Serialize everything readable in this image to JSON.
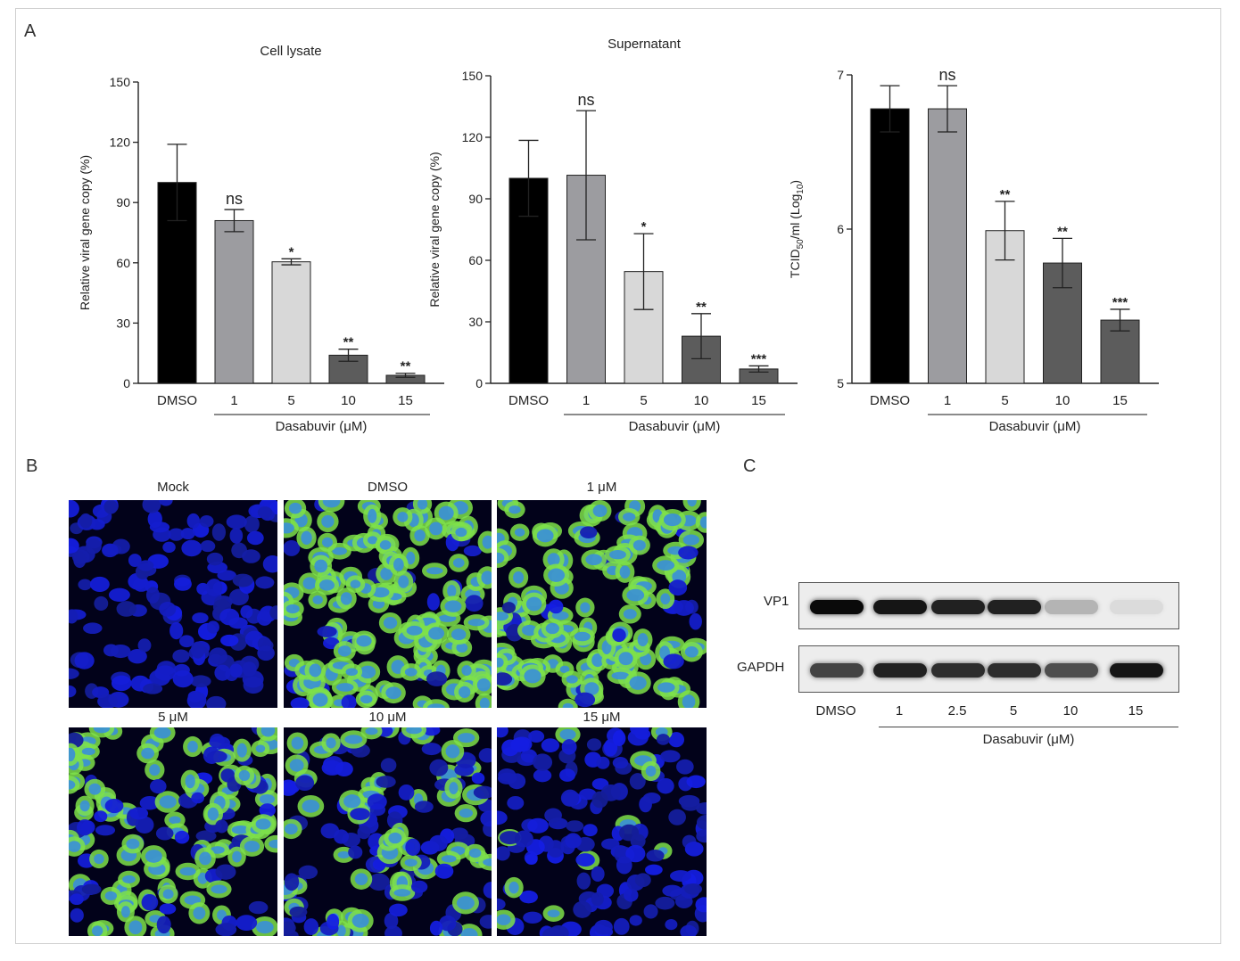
{
  "panels": {
    "a": "A",
    "b": "B",
    "c": "C"
  },
  "chart_data": [
    {
      "type": "bar",
      "title": "Cell lysate",
      "ylabel": "Relative viral gene copy (%)",
      "xlabel": "Dasabuvir (μM)",
      "categories": [
        "DMSO",
        "1",
        "5",
        "10",
        "15"
      ],
      "values": [
        100,
        81,
        60.5,
        14,
        4
      ],
      "errors": [
        19,
        5.5,
        1.5,
        3,
        1
      ],
      "annotations": [
        "",
        "ns",
        "*",
        "**",
        "**"
      ],
      "ylim": [
        0,
        150
      ],
      "yticks": [
        "0",
        "30",
        "60",
        "90",
        "120",
        "150"
      ],
      "colors": [
        "#000000",
        "#9c9ca0",
        "#d8d8d8",
        "#5c5c5c",
        "#5c5c5c"
      ]
    },
    {
      "type": "bar",
      "title": "Supernatant",
      "ylabel": "Relative viral gene copy (%)",
      "xlabel": "Dasabuvir (μM)",
      "categories": [
        "DMSO",
        "1",
        "5",
        "10",
        "15"
      ],
      "values": [
        100,
        101.5,
        54.5,
        23,
        7
      ],
      "errors": [
        18.5,
        31.5,
        18.5,
        11,
        1.5
      ],
      "annotations": [
        "",
        "ns",
        "*",
        "**",
        "***"
      ],
      "ylim": [
        0,
        150
      ],
      "yticks": [
        "0",
        "30",
        "60",
        "90",
        "120",
        "150"
      ],
      "colors": [
        "#000000",
        "#9c9ca0",
        "#d8d8d8",
        "#5c5c5c",
        "#5c5c5c"
      ]
    },
    {
      "type": "bar",
      "title": "",
      "ylabel": "TCID50/ml (Log10)",
      "xlabel": "Dasabuvir (μM)",
      "categories": [
        "DMSO",
        "1",
        "5",
        "10",
        "15"
      ],
      "values": [
        6.78,
        6.78,
        5.99,
        5.78,
        5.41
      ],
      "errors": [
        0.15,
        0.15,
        0.19,
        0.16,
        0.07
      ],
      "annotations": [
        "",
        "ns",
        "**",
        "**",
        "***"
      ],
      "ylim": [
        5,
        7
      ],
      "yticks": [
        "5",
        "6",
        "7"
      ],
      "colors": [
        "#000000",
        "#9c9ca0",
        "#d8d8d8",
        "#5c5c5c",
        "#5c5c5c"
      ]
    }
  ],
  "microscopy": {
    "titles": [
      "Mock",
      "DMSO",
      "1 μM",
      "5 μM",
      "10 μM",
      "15 μM"
    ],
    "infection_level": [
      0,
      0.85,
      0.8,
      0.6,
      0.35,
      0.05
    ]
  },
  "western_blot": {
    "bands": [
      "VP1",
      "GAPDH"
    ],
    "lanes": [
      "DMSO",
      "1",
      "2.5",
      "5",
      "10",
      "15"
    ],
    "xlabel": "Dasabuvir (μM)",
    "vp1_intensity": [
      1.0,
      0.95,
      0.9,
      0.9,
      0.25,
      0.08
    ],
    "gapdh_intensity": [
      0.75,
      0.9,
      0.85,
      0.85,
      0.7,
      0.95
    ]
  }
}
